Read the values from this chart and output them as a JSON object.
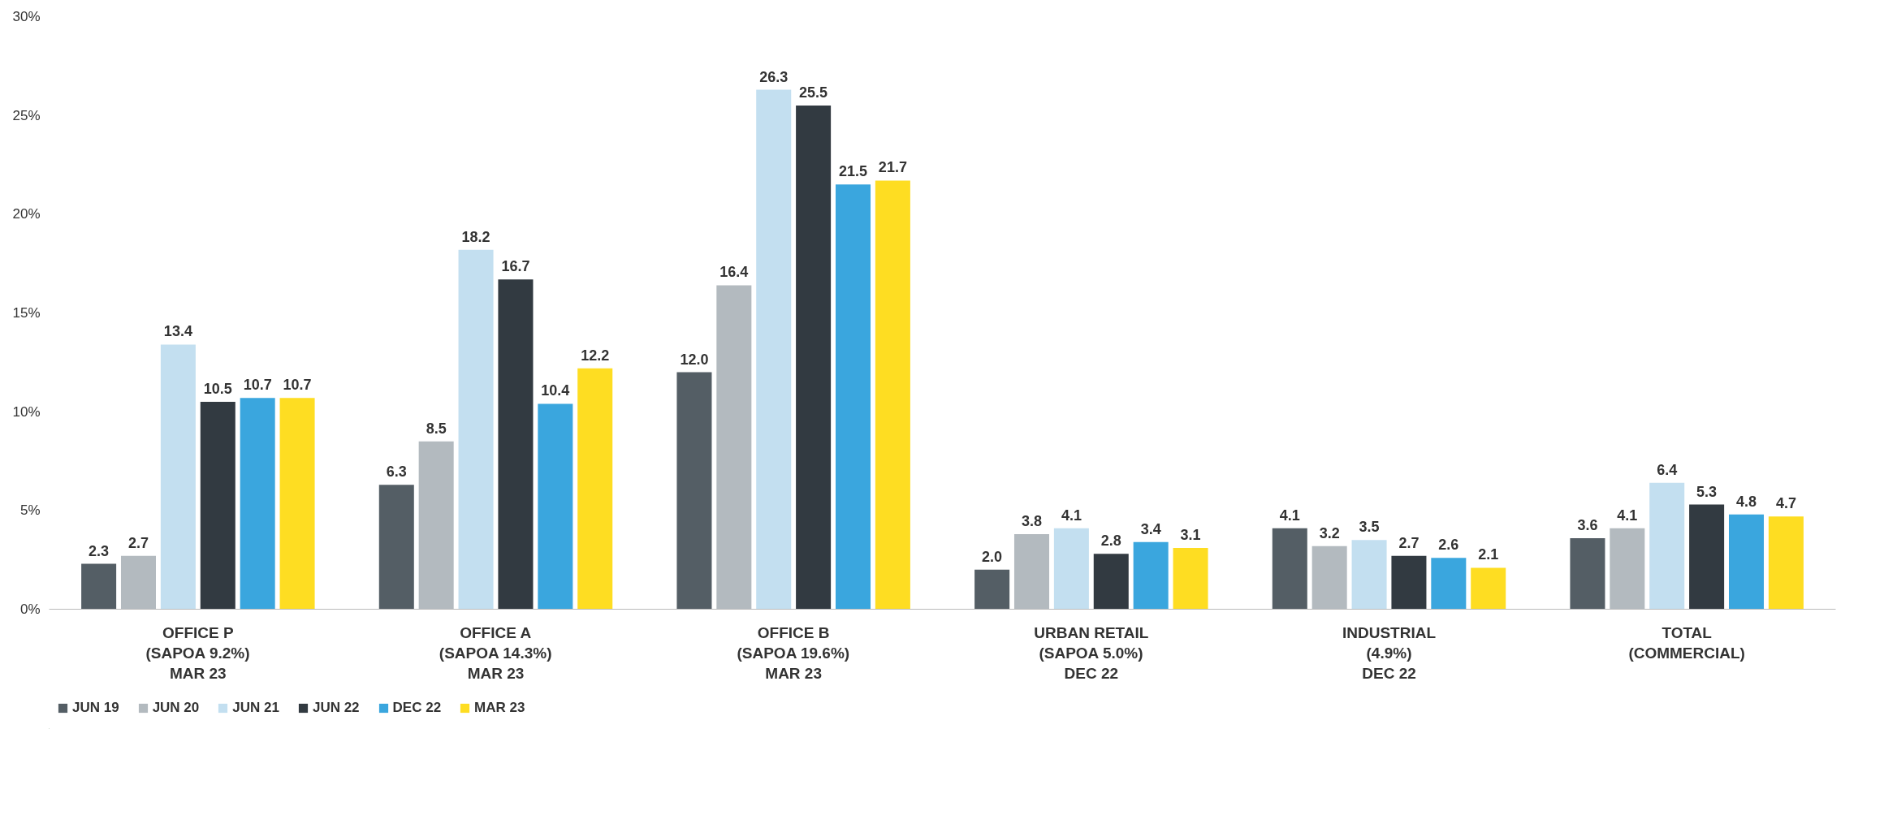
{
  "chart_data": {
    "type": "bar",
    "categories": [
      "OFFICE P\n(SAPOA 9.2%)\nMAR 23",
      "OFFICE A\n(SAPOA 14.3%)\nMAR 23",
      "OFFICE B\n(SAPOA 19.6%)\nMAR 23",
      "URBAN RETAIL\n(SAPOA 5.0%)\nDEC 22",
      "INDUSTRIAL\n(4.9%)\nDEC 22",
      "TOTAL\n(COMMERCIAL)"
    ],
    "series": [
      {
        "name": "JUN 19",
        "color": "#545e65",
        "values": [
          2.3,
          6.3,
          12.0,
          2.0,
          4.1,
          3.6
        ],
        "value_labels": [
          "2.3",
          "6.3",
          "12.0",
          "2.0",
          "4.1",
          "3.6"
        ]
      },
      {
        "name": "JUN 20",
        "color": "#b3babf",
        "values": [
          2.7,
          8.5,
          16.4,
          3.8,
          3.2,
          4.1
        ]
      },
      {
        "name": "JUN 21",
        "color": "#c3dff0",
        "values": [
          13.4,
          18.2,
          26.3,
          4.1,
          3.5,
          6.4
        ]
      },
      {
        "name": "JUN 22",
        "color": "#323a41",
        "values": [
          10.5,
          16.7,
          25.5,
          2.8,
          2.7,
          5.3
        ]
      },
      {
        "name": "DEC 22",
        "color": "#3aa6de",
        "values": [
          10.7,
          10.4,
          21.5,
          3.4,
          2.6,
          4.8
        ]
      },
      {
        "name": "MAR 23",
        "color": "#fedd22",
        "values": [
          10.7,
          12.2,
          21.7,
          3.1,
          2.1,
          4.7
        ]
      }
    ],
    "ylim": [
      0,
      30
    ],
    "yticks": [
      {
        "value": 0,
        "label": "0%"
      },
      {
        "value": 5,
        "label": "5%"
      },
      {
        "value": 10,
        "label": "10%"
      },
      {
        "value": 15,
        "label": "15%"
      },
      {
        "value": 20,
        "label": "20%"
      },
      {
        "value": 25,
        "label": "25%"
      },
      {
        "value": 30,
        "label": "30%"
      }
    ],
    "grid": false,
    "legend": "bottom left",
    "data_labels": true
  }
}
